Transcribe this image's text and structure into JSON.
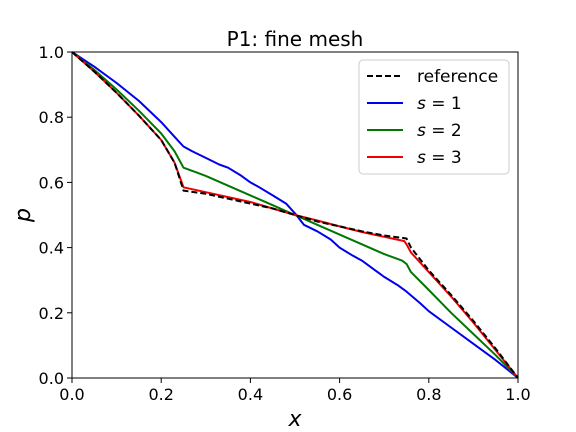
{
  "chart_data": {
    "type": "line",
    "title": "P1: fine mesh",
    "xlabel": "x",
    "ylabel": "p",
    "xlim": [
      0.0,
      1.0
    ],
    "ylim": [
      0.0,
      1.0
    ],
    "xticks": [
      0.0,
      0.2,
      0.4,
      0.6,
      0.8,
      1.0
    ],
    "yticks": [
      0.0,
      0.2,
      0.4,
      0.6,
      0.8,
      1.0
    ],
    "xtick_labels": [
      "0.0",
      "0.2",
      "0.4",
      "0.6",
      "0.8",
      "1.0"
    ],
    "ytick_labels": [
      "0.0",
      "0.2",
      "0.4",
      "0.6",
      "0.8",
      "1.0"
    ],
    "grid": false,
    "legend_position": "top-right",
    "series": [
      {
        "name": "reference",
        "legend_var": "",
        "legend_rhs": "",
        "color": "#000000",
        "dash": "dashed",
        "x": [
          0.0,
          0.05,
          0.1,
          0.15,
          0.2,
          0.23,
          0.25,
          0.3,
          0.35,
          0.4,
          0.45,
          0.5,
          0.55,
          0.6,
          0.65,
          0.7,
          0.75,
          0.76,
          0.8,
          0.85,
          0.9,
          0.95,
          1.0
        ],
        "y": [
          1.0,
          0.94,
          0.875,
          0.805,
          0.73,
          0.66,
          0.575,
          0.565,
          0.55,
          0.535,
          0.52,
          0.5,
          0.48,
          0.465,
          0.45,
          0.437,
          0.428,
          0.4,
          0.33,
          0.255,
          0.175,
          0.09,
          0.0
        ]
      },
      {
        "name": "s = 1",
        "legend_var": "s",
        "legend_rhs": " = 1",
        "color": "#0000ee",
        "dash": "solid",
        "x": [
          0.0,
          0.05,
          0.1,
          0.15,
          0.2,
          0.24,
          0.25,
          0.27,
          0.3,
          0.33,
          0.35,
          0.38,
          0.4,
          0.42,
          0.45,
          0.48,
          0.5,
          0.52,
          0.55,
          0.58,
          0.6,
          0.63,
          0.65,
          0.68,
          0.7,
          0.73,
          0.75,
          0.78,
          0.8,
          0.85,
          0.9,
          0.95,
          1.0
        ],
        "y": [
          1.0,
          0.955,
          0.905,
          0.85,
          0.785,
          0.725,
          0.71,
          0.695,
          0.675,
          0.655,
          0.645,
          0.62,
          0.6,
          0.585,
          0.56,
          0.535,
          0.505,
          0.47,
          0.45,
          0.425,
          0.4,
          0.375,
          0.36,
          0.33,
          0.31,
          0.285,
          0.265,
          0.23,
          0.205,
          0.155,
          0.105,
          0.055,
          0.0
        ]
      },
      {
        "name": "s = 2",
        "legend_var": "s",
        "legend_rhs": " = 2",
        "color": "#007700",
        "dash": "solid",
        "x": [
          0.0,
          0.05,
          0.1,
          0.15,
          0.2,
          0.23,
          0.25,
          0.28,
          0.3,
          0.35,
          0.4,
          0.45,
          0.5,
          0.55,
          0.6,
          0.65,
          0.7,
          0.74,
          0.75,
          0.76,
          0.8,
          0.85,
          0.9,
          0.95,
          1.0
        ],
        "y": [
          1.0,
          0.945,
          0.885,
          0.82,
          0.75,
          0.695,
          0.645,
          0.63,
          0.62,
          0.59,
          0.56,
          0.53,
          0.5,
          0.47,
          0.44,
          0.41,
          0.38,
          0.36,
          0.35,
          0.325,
          0.27,
          0.2,
          0.135,
          0.07,
          0.0
        ]
      },
      {
        "name": "s = 3",
        "legend_var": "s",
        "legend_rhs": " = 3",
        "color": "#ee0000",
        "dash": "solid",
        "x": [
          0.0,
          0.05,
          0.1,
          0.15,
          0.2,
          0.23,
          0.25,
          0.3,
          0.35,
          0.4,
          0.45,
          0.5,
          0.55,
          0.6,
          0.65,
          0.7,
          0.745,
          0.75,
          0.76,
          0.8,
          0.85,
          0.9,
          0.95,
          1.0
        ],
        "y": [
          1.0,
          0.94,
          0.875,
          0.805,
          0.73,
          0.66,
          0.585,
          0.57,
          0.555,
          0.54,
          0.52,
          0.5,
          0.483,
          0.465,
          0.448,
          0.433,
          0.42,
          0.41,
          0.385,
          0.325,
          0.25,
          0.17,
          0.085,
          0.0
        ]
      }
    ]
  }
}
